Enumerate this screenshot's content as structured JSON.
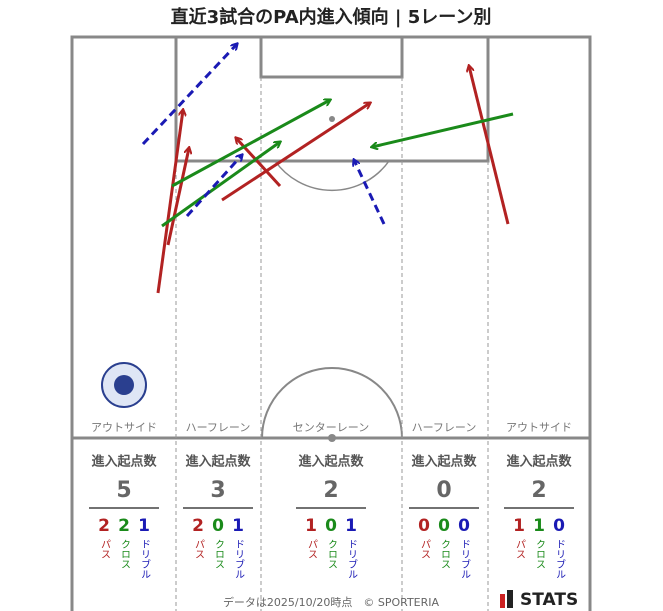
{
  "title": "直近3試合のPA内進入傾向 | 5レーン別",
  "stats_heading": "進入起点数",
  "kinds": [
    "パス",
    "クロス",
    "ドリブル"
  ],
  "lanes": [
    {
      "name": "アウトサイド",
      "total": 5,
      "counts": [
        2,
        2,
        1
      ]
    },
    {
      "name": "ハーフレーン",
      "total": 3,
      "counts": [
        2,
        0,
        1
      ]
    },
    {
      "name": "センターレーン",
      "total": 2,
      "counts": [
        1,
        0,
        1
      ]
    },
    {
      "name": "ハーフレーン",
      "total": 0,
      "counts": [
        0,
        0,
        0
      ]
    },
    {
      "name": "アウトサイド",
      "total": 2,
      "counts": [
        1,
        1,
        0
      ]
    }
  ],
  "footer": "データは2025/10/20時点　© SPORTERIA",
  "brand": "STATS"
}
